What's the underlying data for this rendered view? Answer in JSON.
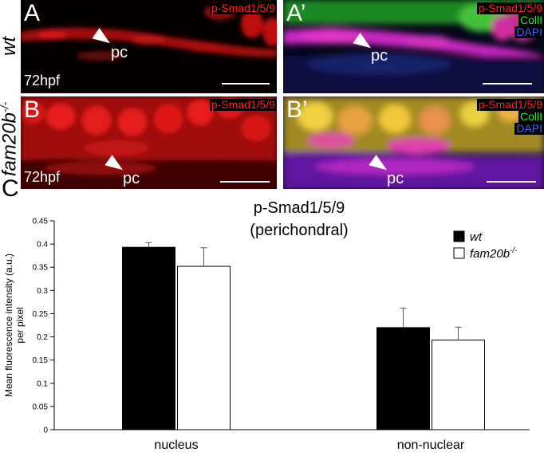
{
  "panels": {
    "A": {
      "letter": "A",
      "marker": "p-Smad1/5/9",
      "time": "72hpf",
      "pc": "pc"
    },
    "A2": {
      "letter": "A’",
      "marker": "p-Smad1/5/9",
      "coll": "CollI",
      "dapi": "DAPI",
      "pc": "pc"
    },
    "B": {
      "letter": "B",
      "marker": "p-Smad1/5/9",
      "time": "72hpf",
      "pc": "pc"
    },
    "B2": {
      "letter": "B’",
      "marker": "p-Smad1/5/9",
      "coll": "CollI",
      "dapi": "DAPI",
      "pc": "pc"
    }
  },
  "row_labels": {
    "wt": "wt",
    "mutant": "fam20b",
    "mutant_sup": "-/-"
  },
  "colors": {
    "marker_red": "#ff2020",
    "coll_green": "#22ee22",
    "dapi_blue": "#3366ff"
  },
  "chart_data": {
    "type": "bar",
    "panel_letter": "C",
    "title": "p-Smad1/5/9",
    "subtitle": "(perichondral)",
    "ylabel_line1": "Mean fluorescence intensity (a.u.)",
    "ylabel_line2": "per pixel",
    "ylim": [
      0,
      0.45
    ],
    "yticks": [
      0,
      0.05,
      0.1,
      0.15,
      0.2,
      0.25,
      0.3,
      0.35,
      0.4,
      0.45
    ],
    "categories": [
      "nucleus",
      "non-nuclear"
    ],
    "series": [
      {
        "name": "wt",
        "values": [
          0.393,
          0.22
        ],
        "errors": [
          0.01,
          0.042
        ],
        "color": "#000000"
      },
      {
        "name": "fam20b-/-",
        "name_base": "fam20b",
        "name_sup": "-/-",
        "values": [
          0.352,
          0.193
        ],
        "errors": [
          0.04,
          0.028
        ],
        "color": "#ffffff"
      }
    ],
    "legend_position": "top-right",
    "grid": false
  }
}
